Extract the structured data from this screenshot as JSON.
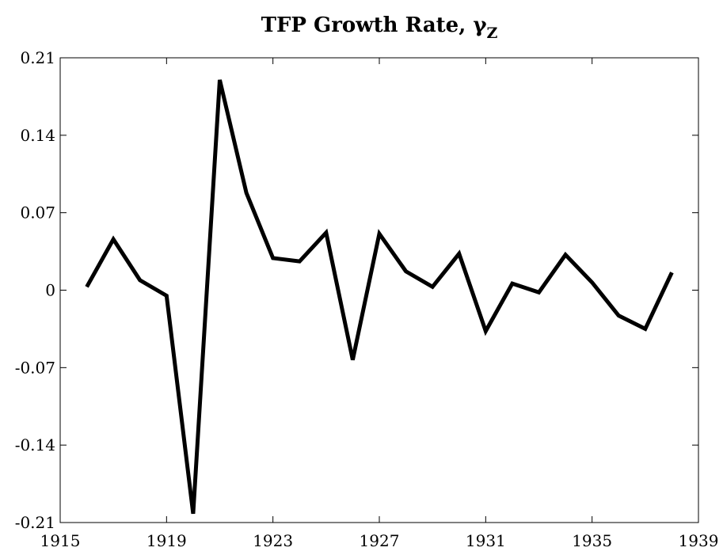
{
  "chart_data": {
    "type": "line",
    "title": "TFP Growth Rate, γ",
    "title_subscript": "Z",
    "x": [
      1916,
      1917,
      1918,
      1919,
      1920,
      1921,
      1922,
      1923,
      1924,
      1925,
      1926,
      1927,
      1928,
      1929,
      1930,
      1931,
      1932,
      1933,
      1934,
      1935,
      1936,
      1937,
      1938
    ],
    "series": [
      {
        "color": "#000000",
        "values": [
          0.003,
          0.046,
          0.009,
          -0.005,
          -0.202,
          0.19,
          0.088,
          0.029,
          0.026,
          0.052,
          -0.063,
          0.051,
          0.017,
          0.003,
          0.033,
          -0.037,
          0.006,
          -0.002,
          0.032,
          0.007,
          -0.023,
          -0.035,
          0.016
        ]
      }
    ],
    "xlim": [
      1915,
      1939
    ],
    "xticks": [
      1915,
      1919,
      1923,
      1927,
      1931,
      1935,
      1939
    ],
    "ylim": [
      -0.21,
      0.21
    ],
    "yticks": [
      -0.21,
      -0.14,
      -0.07,
      0,
      0.07,
      0.14,
      0.21
    ]
  }
}
